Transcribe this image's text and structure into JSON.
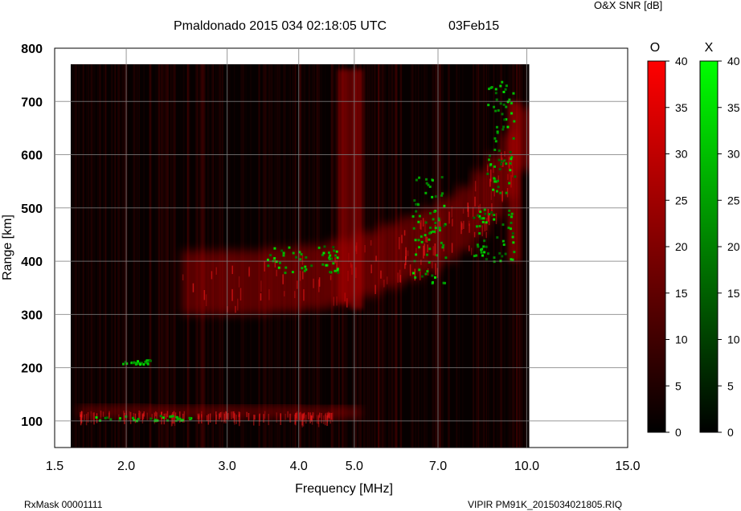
{
  "chart_data": {
    "type": "heatmap",
    "title": "Pmaldonado 2015 034 02:18:05 UTC",
    "date_label": "03Feb15",
    "colorbar_title": "O&X SNR [dB]",
    "xlabel": "Frequency [MHz]",
    "ylabel": "Range [km]",
    "x_scale": "log",
    "xlim": [
      1.5,
      15.0
    ],
    "ylim": [
      50,
      800
    ],
    "x_ticks": [
      "1.5",
      "2.0",
      "3.0",
      "4.0",
      "5.0",
      "7.0",
      "10.0",
      "15.0"
    ],
    "y_ticks": [
      "100",
      "200",
      "300",
      "400",
      "500",
      "600",
      "700",
      "800"
    ],
    "grid": true,
    "data_extent": {
      "x": [
        1.6,
        10.1
      ],
      "y": [
        50,
        770
      ]
    },
    "series": [
      {
        "name": "O",
        "colormap": "black-to-red",
        "range": [
          0,
          40
        ],
        "ticks": [
          "40",
          "35",
          "30",
          "25",
          "20",
          "15",
          "10",
          "5",
          "0"
        ],
        "traces": [
          {
            "label": "E layer echo",
            "x": [
              1.65,
              2.2,
              3.0,
              4.0,
              4.6
            ],
            "y": [
              107,
              106,
              106,
              105,
              105
            ]
          },
          {
            "label": "F layer echo",
            "x": [
              2.5,
              3.0,
              3.5,
              4.0,
              4.5,
              5.0,
              5.5,
              6.0,
              6.5,
              7.0,
              7.5,
              8.0,
              8.5,
              9.0,
              9.5
            ],
            "y": [
              300,
              300,
              305,
              310,
              320,
              335,
              350,
              365,
              380,
              400,
              420,
              450,
              480,
              520,
              570
            ]
          },
          {
            "label": "bright column",
            "x": [
              4.8
            ],
            "y": [
              320,
              760
            ]
          },
          {
            "label": "bright column",
            "x": [
              5.05
            ],
            "y": [
              310,
              760
            ]
          },
          {
            "label": "bright column",
            "x": [
              9.5
            ],
            "y": [
              400,
              700
            ]
          }
        ]
      },
      {
        "name": "X",
        "colormap": "black-to-green",
        "range": [
          0,
          40
        ],
        "ticks": [
          "40",
          "35",
          "30",
          "25",
          "20",
          "15",
          "10",
          "5",
          "0"
        ],
        "clusters": [
          {
            "x": [
              1.7,
              2.6
            ],
            "y": [
              102,
              112
            ]
          },
          {
            "x": [
              1.95,
              2.2
            ],
            "y": [
              208,
              216
            ]
          },
          {
            "x": [
              3.5,
              4.7
            ],
            "y": [
              380,
              430
            ]
          },
          {
            "x": [
              6.3,
              7.2
            ],
            "y": [
              360,
              560
            ]
          },
          {
            "x": [
              8.0,
              9.5
            ],
            "y": [
              400,
              500
            ]
          },
          {
            "x": [
              8.5,
              9.5
            ],
            "y": [
              520,
              740
            ]
          }
        ]
      }
    ]
  },
  "footer": {
    "left": "RxMask 00001111",
    "right": "VIPIR  PM91K_2015034021805.RIQ"
  }
}
